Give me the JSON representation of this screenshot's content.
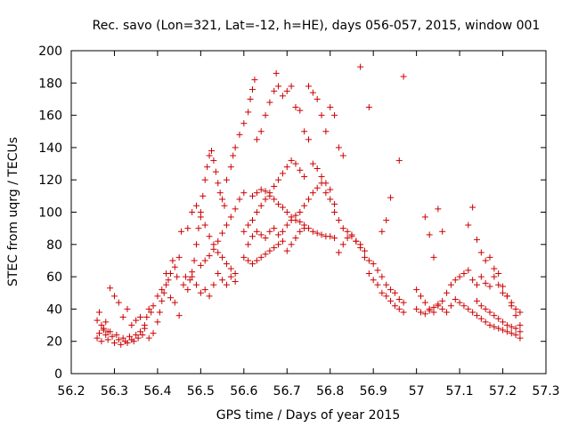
{
  "chart_data": {
    "type": "scatter",
    "title": "Rec. savo (Lon=321, Lat=-12, h=HE), days 056-057, 2015, window 001",
    "xlabel": "GPS time / Days of year 2015",
    "ylabel": "STEC from uqrg / TECUs",
    "xlim": [
      56.2,
      57.3
    ],
    "ylim": [
      0,
      200
    ],
    "xticks": [
      "56.2",
      "56.3",
      "56.4",
      "56.5",
      "56.6",
      "56.7",
      "56.8",
      "56.9",
      "57",
      "57.1",
      "57.2",
      "57.3"
    ],
    "yticks": [
      "0",
      "20",
      "40",
      "60",
      "80",
      "100",
      "120",
      "140",
      "160",
      "180",
      "200"
    ],
    "marker": "+",
    "color": "#cc0000",
    "grid": false,
    "points": [
      [
        56.26,
        22
      ],
      [
        56.265,
        25
      ],
      [
        56.27,
        20
      ],
      [
        56.275,
        27
      ],
      [
        56.28,
        24
      ],
      [
        56.285,
        21
      ],
      [
        56.29,
        26
      ],
      [
        56.295,
        23
      ],
      [
        56.3,
        19
      ],
      [
        56.305,
        24
      ],
      [
        56.31,
        21
      ],
      [
        56.315,
        18
      ],
      [
        56.32,
        22
      ],
      [
        56.325,
        20
      ],
      [
        56.33,
        19
      ],
      [
        56.335,
        23
      ],
      [
        56.34,
        21
      ],
      [
        56.345,
        20
      ],
      [
        56.35,
        24
      ],
      [
        56.355,
        22
      ],
      [
        56.36,
        26
      ],
      [
        56.365,
        24
      ],
      [
        56.37,
        28
      ],
      [
        56.26,
        33
      ],
      [
        56.265,
        38
      ],
      [
        56.27,
        30
      ],
      [
        56.275,
        28
      ],
      [
        56.28,
        32
      ],
      [
        56.285,
        26
      ],
      [
        56.29,
        53
      ],
      [
        56.3,
        48
      ],
      [
        56.31,
        44
      ],
      [
        56.32,
        35
      ],
      [
        56.33,
        40
      ],
      [
        56.34,
        30
      ],
      [
        56.35,
        33
      ],
      [
        56.36,
        35
      ],
      [
        56.37,
        30
      ],
      [
        56.375,
        35
      ],
      [
        56.38,
        40
      ],
      [
        56.385,
        38
      ],
      [
        56.38,
        22
      ],
      [
        56.39,
        25
      ],
      [
        56.4,
        32
      ],
      [
        56.405,
        38
      ],
      [
        56.41,
        45
      ],
      [
        56.415,
        50
      ],
      [
        56.42,
        55
      ],
      [
        56.425,
        58
      ],
      [
        56.43,
        62
      ],
      [
        56.435,
        70
      ],
      [
        56.44,
        66
      ],
      [
        56.445,
        60
      ],
      [
        56.45,
        72
      ],
      [
        56.455,
        88
      ],
      [
        56.39,
        42
      ],
      [
        56.4,
        48
      ],
      [
        56.41,
        52
      ],
      [
        56.42,
        62
      ],
      [
        56.43,
        47
      ],
      [
        56.44,
        44
      ],
      [
        56.45,
        36
      ],
      [
        56.46,
        55
      ],
      [
        56.465,
        60
      ],
      [
        56.47,
        52
      ],
      [
        56.475,
        58
      ],
      [
        56.48,
        63
      ],
      [
        56.485,
        70
      ],
      [
        56.49,
        80
      ],
      [
        56.495,
        90
      ],
      [
        56.5,
        100
      ],
      [
        56.505,
        110
      ],
      [
        56.51,
        120
      ],
      [
        56.515,
        128
      ],
      [
        56.52,
        135
      ],
      [
        56.525,
        138
      ],
      [
        56.53,
        132
      ],
      [
        56.535,
        125
      ],
      [
        56.54,
        118
      ],
      [
        56.545,
        112
      ],
      [
        56.55,
        108
      ],
      [
        56.555,
        104
      ],
      [
        56.47,
        90
      ],
      [
        56.48,
        100
      ],
      [
        56.49,
        104
      ],
      [
        56.5,
        97
      ],
      [
        56.51,
        92
      ],
      [
        56.52,
        85
      ],
      [
        56.53,
        80
      ],
      [
        56.54,
        75
      ],
      [
        56.55,
        72
      ],
      [
        56.56,
        68
      ],
      [
        56.57,
        65
      ],
      [
        56.58,
        62
      ],
      [
        56.48,
        60
      ],
      [
        56.49,
        55
      ],
      [
        56.5,
        50
      ],
      [
        56.51,
        52
      ],
      [
        56.52,
        48
      ],
      [
        56.53,
        55
      ],
      [
        56.54,
        62
      ],
      [
        56.55,
        58
      ],
      [
        56.56,
        55
      ],
      [
        56.57,
        60
      ],
      [
        56.58,
        57
      ],
      [
        56.5,
        67
      ],
      [
        56.51,
        70
      ],
      [
        56.52,
        73
      ],
      [
        56.53,
        77
      ],
      [
        56.54,
        82
      ],
      [
        56.55,
        87
      ],
      [
        56.56,
        92
      ],
      [
        56.57,
        97
      ],
      [
        56.58,
        102
      ],
      [
        56.59,
        108
      ],
      [
        56.6,
        112
      ],
      [
        56.56,
        120
      ],
      [
        56.57,
        128
      ],
      [
        56.575,
        135
      ],
      [
        56.58,
        140
      ],
      [
        56.59,
        148
      ],
      [
        56.6,
        155
      ],
      [
        56.61,
        162
      ],
      [
        56.615,
        170
      ],
      [
        56.62,
        176
      ],
      [
        56.625,
        182
      ],
      [
        56.6,
        72
      ],
      [
        56.61,
        70
      ],
      [
        56.62,
        68
      ],
      [
        56.63,
        70
      ],
      [
        56.64,
        72
      ],
      [
        56.65,
        74
      ],
      [
        56.66,
        76
      ],
      [
        56.67,
        78
      ],
      [
        56.68,
        80
      ],
      [
        56.69,
        82
      ],
      [
        56.7,
        76
      ],
      [
        56.71,
        80
      ],
      [
        56.72,
        84
      ],
      [
        56.73,
        88
      ],
      [
        56.74,
        90
      ],
      [
        56.6,
        88
      ],
      [
        56.61,
        92
      ],
      [
        56.62,
        95
      ],
      [
        56.63,
        100
      ],
      [
        56.64,
        104
      ],
      [
        56.65,
        108
      ],
      [
        56.66,
        112
      ],
      [
        56.67,
        116
      ],
      [
        56.68,
        120
      ],
      [
        56.69,
        124
      ],
      [
        56.7,
        128
      ],
      [
        56.71,
        132
      ],
      [
        56.72,
        130
      ],
      [
        56.73,
        126
      ],
      [
        56.74,
        122
      ],
      [
        56.63,
        145
      ],
      [
        56.64,
        150
      ],
      [
        56.65,
        160
      ],
      [
        56.66,
        168
      ],
      [
        56.67,
        175
      ],
      [
        56.675,
        186
      ],
      [
        56.68,
        178
      ],
      [
        56.69,
        172
      ],
      [
        56.7,
        175
      ],
      [
        56.71,
        178
      ],
      [
        56.72,
        165
      ],
      [
        56.73,
        163
      ],
      [
        56.74,
        150
      ],
      [
        56.75,
        145
      ],
      [
        56.62,
        110
      ],
      [
        56.63,
        112
      ],
      [
        56.64,
        114
      ],
      [
        56.65,
        113
      ],
      [
        56.66,
        110
      ],
      [
        56.67,
        108
      ],
      [
        56.68,
        105
      ],
      [
        56.69,
        103
      ],
      [
        56.7,
        100
      ],
      [
        56.71,
        97
      ],
      [
        56.72,
        95
      ],
      [
        56.73,
        94
      ],
      [
        56.74,
        92
      ],
      [
        56.75,
        90
      ],
      [
        56.76,
        88
      ],
      [
        56.77,
        87
      ],
      [
        56.78,
        86
      ],
      [
        56.79,
        85
      ],
      [
        56.8,
        85
      ],
      [
        56.81,
        84
      ],
      [
        56.61,
        80
      ],
      [
        56.62,
        85
      ],
      [
        56.63,
        88
      ],
      [
        56.64,
        86
      ],
      [
        56.65,
        84
      ],
      [
        56.66,
        88
      ],
      [
        56.67,
        90
      ],
      [
        56.68,
        86
      ],
      [
        56.69,
        88
      ],
      [
        56.7,
        92
      ],
      [
        56.71,
        95
      ],
      [
        56.72,
        98
      ],
      [
        56.73,
        100
      ],
      [
        56.74,
        104
      ],
      [
        56.75,
        108
      ],
      [
        56.76,
        112
      ],
      [
        56.77,
        115
      ],
      [
        56.78,
        118
      ],
      [
        56.79,
        112
      ],
      [
        56.8,
        108
      ],
      [
        56.81,
        105
      ],
      [
        56.75,
        178
      ],
      [
        56.76,
        174
      ],
      [
        56.77,
        170
      ],
      [
        56.78,
        160
      ],
      [
        56.79,
        150
      ],
      [
        56.8,
        165
      ],
      [
        56.81,
        160
      ],
      [
        56.82,
        140
      ],
      [
        56.83,
        135
      ],
      [
        56.76,
        130
      ],
      [
        56.77,
        127
      ],
      [
        56.78,
        122
      ],
      [
        56.79,
        118
      ],
      [
        56.8,
        114
      ],
      [
        56.81,
        100
      ],
      [
        56.82,
        95
      ],
      [
        56.83,
        90
      ],
      [
        56.84,
        88
      ],
      [
        56.85,
        85
      ],
      [
        56.86,
        82
      ],
      [
        56.87,
        80
      ],
      [
        56.88,
        76
      ],
      [
        56.89,
        70
      ],
      [
        56.9,
        68
      ],
      [
        56.91,
        64
      ],
      [
        56.92,
        60
      ],
      [
        56.93,
        55
      ],
      [
        56.94,
        52
      ],
      [
        56.95,
        50
      ],
      [
        56.96,
        46
      ],
      [
        56.97,
        44
      ],
      [
        56.82,
        75
      ],
      [
        56.83,
        80
      ],
      [
        56.84,
        84
      ],
      [
        56.85,
        86
      ],
      [
        56.86,
        82
      ],
      [
        56.87,
        78
      ],
      [
        56.88,
        72
      ],
      [
        56.89,
        62
      ],
      [
        56.9,
        58
      ],
      [
        56.91,
        55
      ],
      [
        56.92,
        50
      ],
      [
        56.93,
        48
      ],
      [
        56.94,
        45
      ],
      [
        56.95,
        42
      ],
      [
        56.96,
        40
      ],
      [
        56.97,
        38
      ],
      [
        56.87,
        190
      ],
      [
        56.89,
        165
      ],
      [
        56.96,
        132
      ],
      [
        56.97,
        184
      ],
      [
        56.94,
        109
      ],
      [
        56.93,
        95
      ],
      [
        56.92,
        88
      ],
      [
        57.02,
        97
      ],
      [
        57.03,
        86
      ],
      [
        57.04,
        72
      ],
      [
        57.05,
        102
      ],
      [
        57.06,
        88
      ],
      [
        57.12,
        92
      ],
      [
        57.13,
        103
      ],
      [
        57.14,
        83
      ],
      [
        57.15,
        75
      ],
      [
        57.0,
        52
      ],
      [
        57.01,
        48
      ],
      [
        57.02,
        44
      ],
      [
        57.03,
        40
      ],
      [
        57.04,
        38
      ],
      [
        57.05,
        42
      ],
      [
        57.06,
        45
      ],
      [
        57.07,
        50
      ],
      [
        57.08,
        55
      ],
      [
        57.09,
        58
      ],
      [
        57.1,
        60
      ],
      [
        57.11,
        62
      ],
      [
        57.12,
        64
      ],
      [
        57.0,
        40
      ],
      [
        57.01,
        38
      ],
      [
        57.02,
        37
      ],
      [
        57.03,
        39
      ],
      [
        57.04,
        41
      ],
      [
        57.05,
        43
      ],
      [
        57.06,
        40
      ],
      [
        57.07,
        38
      ],
      [
        57.08,
        42
      ],
      [
        57.09,
        46
      ],
      [
        57.1,
        44
      ],
      [
        57.11,
        42
      ],
      [
        57.12,
        40
      ],
      [
        57.13,
        38
      ],
      [
        57.14,
        36
      ],
      [
        57.15,
        34
      ],
      [
        57.16,
        32
      ],
      [
        57.17,
        30
      ],
      [
        57.18,
        29
      ],
      [
        57.19,
        28
      ],
      [
        57.2,
        27
      ],
      [
        57.21,
        26
      ],
      [
        57.22,
        25
      ],
      [
        57.23,
        24
      ],
      [
        57.24,
        22
      ],
      [
        57.13,
        58
      ],
      [
        57.14,
        55
      ],
      [
        57.15,
        60
      ],
      [
        57.16,
        56
      ],
      [
        57.17,
        54
      ],
      [
        57.18,
        60
      ],
      [
        57.19,
        55
      ],
      [
        57.2,
        50
      ],
      [
        57.21,
        48
      ],
      [
        57.22,
        44
      ],
      [
        57.23,
        40
      ],
      [
        57.24,
        38
      ],
      [
        57.14,
        45
      ],
      [
        57.15,
        42
      ],
      [
        57.16,
        40
      ],
      [
        57.17,
        38
      ],
      [
        57.18,
        36
      ],
      [
        57.19,
        34
      ],
      [
        57.2,
        32
      ],
      [
        57.21,
        30
      ],
      [
        57.22,
        29
      ],
      [
        57.23,
        28
      ],
      [
        57.24,
        26
      ],
      [
        57.16,
        70
      ],
      [
        57.17,
        72
      ],
      [
        57.18,
        65
      ],
      [
        57.19,
        62
      ],
      [
        57.2,
        54
      ],
      [
        57.21,
        48
      ],
      [
        57.22,
        42
      ],
      [
        57.23,
        36
      ],
      [
        57.24,
        30
      ]
    ]
  }
}
